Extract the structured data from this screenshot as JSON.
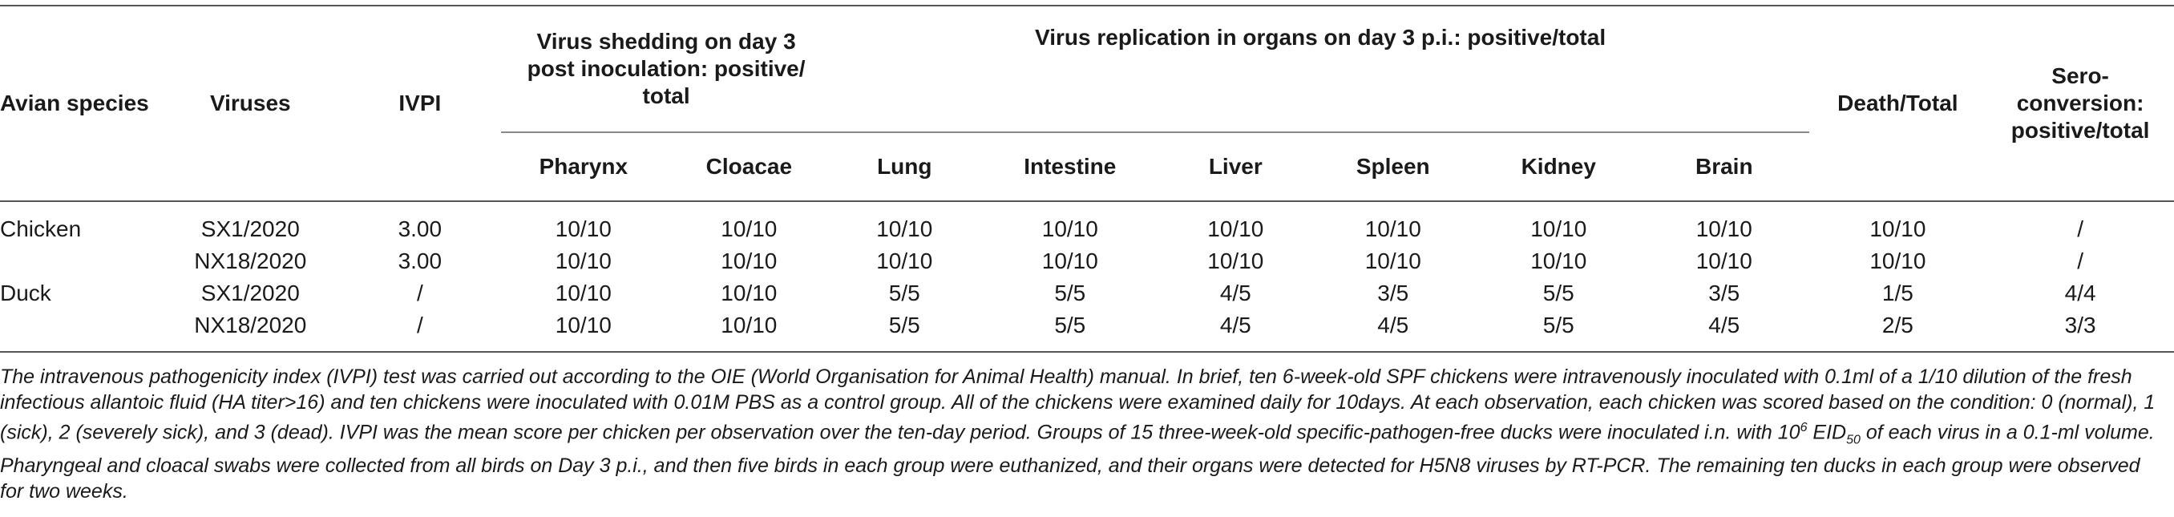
{
  "headers": {
    "avian_species": "Avian species",
    "viruses": "Viruses",
    "ivpi": "IVPI",
    "shedding_group": "Virus shedding on day 3 post inoculation: positive/ total",
    "replication_group": "Virus replication in organs on day 3 p.i.: positive/total",
    "death_total": "Death/Total",
    "seroconversion": "Sero-conversion: positive/total",
    "pharynx": "Pharynx",
    "cloacae": "Cloacae",
    "lung": "Lung",
    "intestine": "Intestine",
    "liver": "Liver",
    "spleen": "Spleen",
    "kidney": "Kidney",
    "brain": "Brain"
  },
  "rows": [
    {
      "species": "Chicken",
      "virus": "SX1/2020",
      "ivpi": "3.00",
      "pharynx": "10/10",
      "cloacae": "10/10",
      "lung": "10/10",
      "intestine": "10/10",
      "liver": "10/10",
      "spleen": "10/10",
      "kidney": "10/10",
      "brain": "10/10",
      "death": "10/10",
      "sero": "/"
    },
    {
      "species": "",
      "virus": "NX18/2020",
      "ivpi": "3.00",
      "pharynx": "10/10",
      "cloacae": "10/10",
      "lung": "10/10",
      "intestine": "10/10",
      "liver": "10/10",
      "spleen": "10/10",
      "kidney": "10/10",
      "brain": "10/10",
      "death": "10/10",
      "sero": "/"
    },
    {
      "species": "Duck",
      "virus": "SX1/2020",
      "ivpi": "/",
      "pharynx": "10/10",
      "cloacae": "10/10",
      "lung": "5/5",
      "intestine": "5/5",
      "liver": "4/5",
      "spleen": "3/5",
      "kidney": "5/5",
      "brain": "3/5",
      "death": "1/5",
      "sero": "4/4"
    },
    {
      "species": "",
      "virus": "NX18/2020",
      "ivpi": "/",
      "pharynx": "10/10",
      "cloacae": "10/10",
      "lung": "5/5",
      "intestine": "5/5",
      "liver": "4/5",
      "spleen": "4/5",
      "kidney": "5/5",
      "brain": "4/5",
      "death": "2/5",
      "sero": "3/3"
    }
  ],
  "footnote": {
    "part1": "The intravenous pathogenicity index (IVPI) test was carried out according to the OIE (World Organisation for Animal Health) manual. In brief, ten 6-week-old SPF chickens were intravenously inoculated with 0.1ml of a 1/10 dilution of the fresh infectious allantoic fluid (HA titer>16) and ten chickens were inoculated with 0.01M PBS as a control group. All of the chickens were examined daily for 10days. At each observation, each chicken was scored based on the condition: 0 (normal), 1 (sick), 2 (severely sick), and 3 (dead). IVPI was the mean score per chicken per observation over the ten-day period. Groups of 15 three-week-old specific-pathogen-free ducks were inoculated i.n. with 10",
    "sup": "6",
    "part2": " EID",
    "sub": "50",
    "part3": " of each virus in a 0.1-ml volume. Pharyngeal and cloacal swabs were collected from all birds on Day 3 p.i., and then five birds in each group were euthanized, and their organs were detected for H5N8 viruses by RT-PCR. The remaining ten ducks in each group were observed for two weeks."
  }
}
